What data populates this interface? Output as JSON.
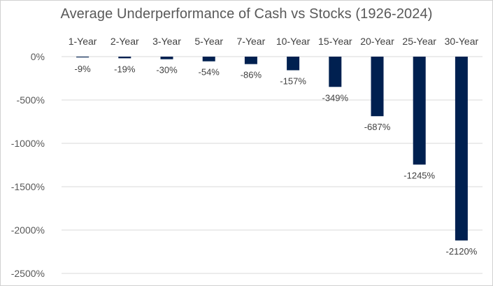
{
  "chart_data": {
    "type": "bar",
    "title": "Average Underperformance of Cash vs Stocks (1926-2024)",
    "categories": [
      "1-Year",
      "2-Year",
      "3-Year",
      "5-Year",
      "7-Year",
      "10-Year",
      "15-Year",
      "20-Year",
      "25-Year",
      "30-Year"
    ],
    "values": [
      -9,
      -19,
      -30,
      -54,
      -86,
      -157,
      -349,
      -687,
      -1245,
      -2120
    ],
    "data_labels": [
      "-9%",
      "-19%",
      "-30%",
      "-54%",
      "-86%",
      "-157%",
      "-349%",
      "-687%",
      "-1245%",
      "-2120%"
    ],
    "ylim": [
      -2500,
      0
    ],
    "yticks": [
      0,
      -500,
      -1000,
      -1500,
      -2000,
      -2500
    ],
    "ytick_labels": [
      "0%",
      "-500%",
      "-1000%",
      "-1500%",
      "-2000%",
      "-2500%"
    ],
    "xlabel": "",
    "ylabel": "",
    "category_axis_position": "top",
    "grid": true,
    "bar_color": "#002050",
    "grid_color": "#d9d9d9"
  }
}
